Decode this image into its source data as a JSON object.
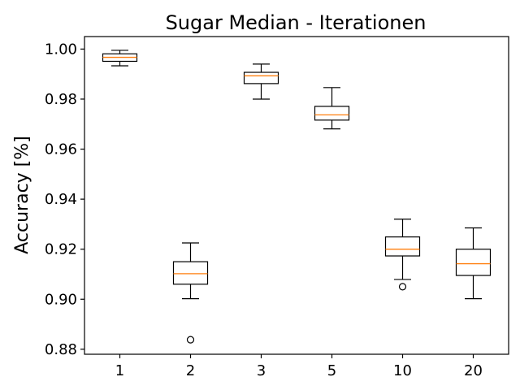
{
  "chart_data": {
    "type": "box",
    "title": "Sugar Median - Iterationen",
    "xlabel": "",
    "ylabel": "Accuracy [%]",
    "ylim": [
      0.878,
      1.005
    ],
    "y_ticks": [
      "0.88",
      "0.90",
      "0.92",
      "0.94",
      "0.96",
      "0.98",
      "1.00"
    ],
    "y_tick_values": [
      0.88,
      0.9,
      0.92,
      0.94,
      0.96,
      0.98,
      1.0
    ],
    "categories": [
      "1",
      "2",
      "3",
      "5",
      "10",
      "20"
    ],
    "boxes": [
      {
        "category": "1",
        "whisker_low": 0.9933,
        "q1": 0.9951,
        "median": 0.9967,
        "q3": 0.9981,
        "whisker_high": 0.9995,
        "outliers": []
      },
      {
        "category": "2",
        "whisker_low": 0.9002,
        "q1": 0.906,
        "median": 0.9102,
        "q3": 0.915,
        "whisker_high": 0.9225,
        "outliers": [
          0.8838
        ]
      },
      {
        "category": "3",
        "whisker_low": 0.98,
        "q1": 0.9862,
        "median": 0.9893,
        "q3": 0.9907,
        "whisker_high": 0.994,
        "outliers": []
      },
      {
        "category": "5",
        "whisker_low": 0.9681,
        "q1": 0.9716,
        "median": 0.9737,
        "q3": 0.9771,
        "whisker_high": 0.9846,
        "outliers": []
      },
      {
        "category": "10",
        "whisker_low": 0.9079,
        "q1": 0.9173,
        "median": 0.92,
        "q3": 0.9249,
        "whisker_high": 0.932,
        "outliers": [
          0.905
        ]
      },
      {
        "category": "20",
        "whisker_low": 0.9002,
        "q1": 0.9095,
        "median": 0.9142,
        "q3": 0.92,
        "whisker_high": 0.9285,
        "outliers": []
      }
    ],
    "colors": {
      "box": "#000000",
      "median": "#ff7f0e",
      "background": "#ffffff"
    },
    "grid": false,
    "legend": "none"
  }
}
